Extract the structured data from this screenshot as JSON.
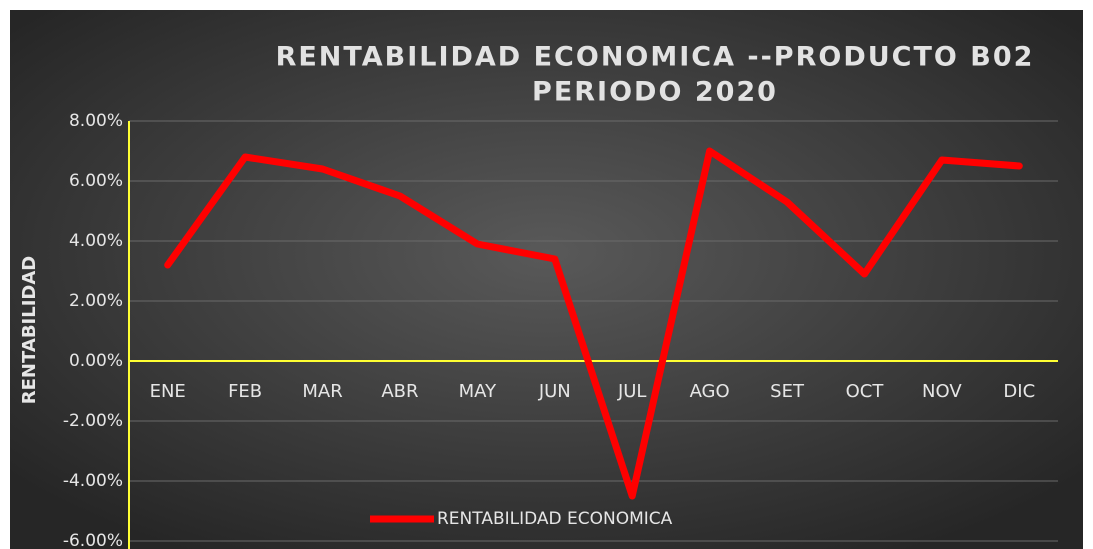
{
  "chart_data": {
    "type": "line",
    "title": [
      "RENTABILIDAD ECONOMICA --PRODUCTO B02",
      "PERIODO 2020"
    ],
    "y_label": "RENTABILIDAD",
    "categories": [
      "ENE",
      "FEB",
      "MAR",
      "ABR",
      "MAY",
      "JUN",
      "JUL",
      "AGO",
      "SET",
      "OCT",
      "NOV",
      "DIC"
    ],
    "series": [
      {
        "name": "RENTABILIDAD ECONOMICA",
        "color": "#ff0000",
        "values": [
          3.2,
          6.8,
          6.4,
          5.5,
          3.9,
          3.4,
          -4.5,
          7.0,
          5.3,
          2.9,
          6.7,
          6.5
        ]
      }
    ],
    "ylim": [
      -6,
      8
    ],
    "yticks": [
      {
        "value": -6,
        "label": "-6.00%"
      },
      {
        "value": -4,
        "label": "-4.00%"
      },
      {
        "value": -2,
        "label": "-2.00%"
      },
      {
        "value": 0,
        "label": "0.00%"
      },
      {
        "value": 2,
        "label": "2.00%"
      },
      {
        "value": 4,
        "label": "4.00%"
      },
      {
        "value": 6,
        "label": "6.00%"
      },
      {
        "value": 8,
        "label": "8.00%"
      }
    ],
    "grid": true,
    "legend": "bottom"
  }
}
